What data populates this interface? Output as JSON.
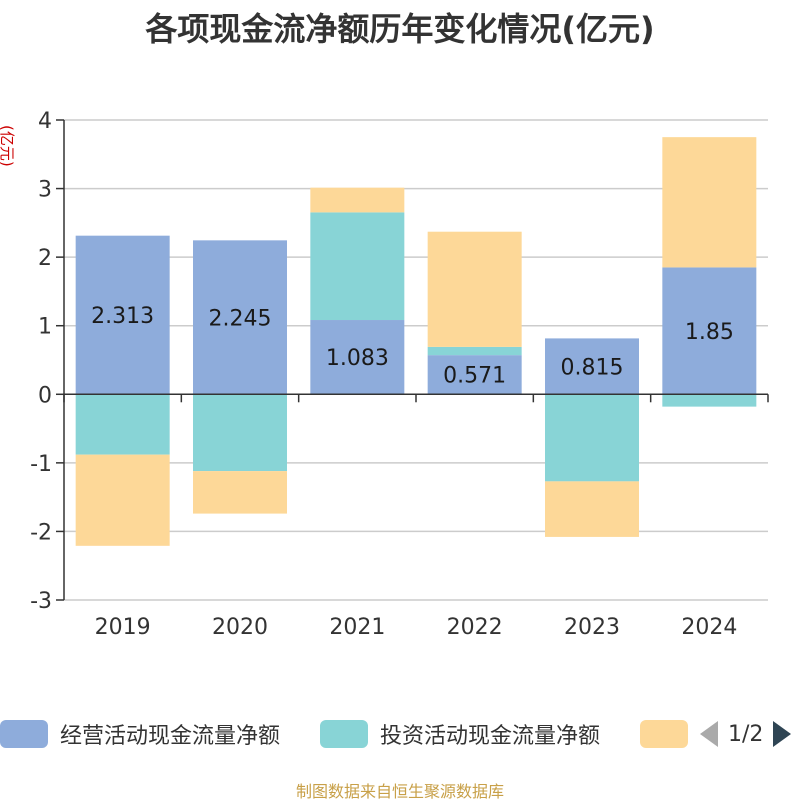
{
  "chart_data": {
    "type": "bar",
    "stacked": true,
    "title": "各项现金流净额历年变化情况(亿元)",
    "ylabel": "(亿元)",
    "xlabel": "",
    "ylim": [
      -3,
      4
    ],
    "yticks": [
      -3,
      -2,
      -1,
      0,
      1,
      2,
      3,
      4
    ],
    "categories": [
      "2019",
      "2020",
      "2021",
      "2022",
      "2023",
      "2024"
    ],
    "series": [
      {
        "name": "经营活动现金流量净额",
        "color": "#8eacdb",
        "values": [
          2.313,
          2.245,
          1.083,
          0.571,
          0.815,
          1.85
        ],
        "data_labels": [
          "2.313",
          "2.245",
          "1.083",
          "0.571",
          "0.815",
          "1.85"
        ]
      },
      {
        "name": "投资活动现金流量净额",
        "color": "#88d4d6",
        "values": [
          -0.88,
          -1.12,
          1.57,
          0.12,
          -1.27,
          -0.18
        ]
      },
      {
        "name": "",
        "color": "#fdd898",
        "values": [
          -1.33,
          -0.62,
          0.36,
          1.68,
          -0.81,
          1.9
        ]
      }
    ],
    "grid": true,
    "legend_position": "bottom"
  },
  "legend": {
    "items": [
      "经营活动现金流量净额",
      "投资活动现金流量净额",
      ""
    ],
    "page_text": "1/2"
  },
  "source_note": "制图数据来自恒生聚源数据库"
}
